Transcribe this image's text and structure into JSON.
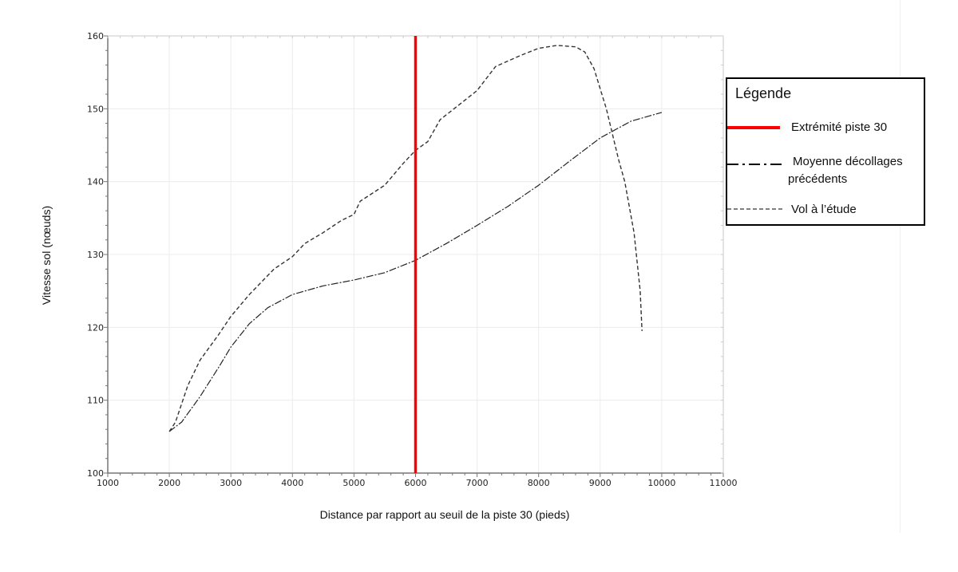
{
  "chart_data": {
    "type": "line",
    "title": "",
    "xlabel": "Distance par rapport au seuil de la piste 30 (pieds)",
    "ylabel": "Vitesse sol (nœuds)",
    "xlim": [
      1000,
      11000
    ],
    "ylim": [
      100,
      160
    ],
    "xticks": [
      1000,
      2000,
      3000,
      4000,
      5000,
      6000,
      7000,
      8000,
      9000,
      10000,
      11000
    ],
    "yticks": [
      100,
      110,
      120,
      130,
      140,
      150,
      160
    ],
    "grid": true,
    "legend_position": "right",
    "legend_title": "Légende",
    "reference_line": {
      "name": "Extrémité piste 30",
      "x": 6000,
      "color": "#ff0000"
    },
    "series": [
      {
        "name": "Moyenne décollages précédents",
        "style": "dash-dot",
        "color": "#222222",
        "points": [
          [
            2000,
            105.7
          ],
          [
            2200,
            107
          ],
          [
            2500,
            110.5
          ],
          [
            2800,
            114.5
          ],
          [
            3000,
            117.3
          ],
          [
            3300,
            120.5
          ],
          [
            3600,
            122.7
          ],
          [
            4000,
            124.5
          ],
          [
            4500,
            125.7
          ],
          [
            5000,
            126.5
          ],
          [
            5500,
            127.5
          ],
          [
            6000,
            129.2
          ],
          [
            6500,
            131.5
          ],
          [
            7000,
            134
          ],
          [
            7500,
            136.6
          ],
          [
            8000,
            139.5
          ],
          [
            8500,
            142.8
          ],
          [
            9000,
            146
          ],
          [
            9500,
            148.3
          ],
          [
            10000,
            149.5
          ]
        ]
      },
      {
        "name": "Vol à l’étude",
        "style": "dashed",
        "color": "#333333",
        "points": [
          [
            2000,
            105.7
          ],
          [
            2100,
            107
          ],
          [
            2300,
            112
          ],
          [
            2500,
            115.5
          ],
          [
            2800,
            119
          ],
          [
            3000,
            121.5
          ],
          [
            3300,
            124.5
          ],
          [
            3700,
            128
          ],
          [
            4000,
            129.7
          ],
          [
            4200,
            131.5
          ],
          [
            4500,
            133
          ],
          [
            4800,
            134.7
          ],
          [
            5000,
            135.5
          ],
          [
            5100,
            137.3
          ],
          [
            5500,
            139.5
          ],
          [
            5800,
            142.5
          ],
          [
            6000,
            144.3
          ],
          [
            6200,
            145.5
          ],
          [
            6400,
            148.5
          ],
          [
            6700,
            150.5
          ],
          [
            7000,
            152.5
          ],
          [
            7300,
            155.8
          ],
          [
            7700,
            157.3
          ],
          [
            8000,
            158.3
          ],
          [
            8300,
            158.7
          ],
          [
            8600,
            158.5
          ],
          [
            8750,
            157.8
          ],
          [
            8900,
            155.5
          ],
          [
            9100,
            150
          ],
          [
            9300,
            143
          ],
          [
            9400,
            140
          ],
          [
            9550,
            133
          ],
          [
            9650,
            125
          ],
          [
            9680,
            119.5
          ]
        ]
      }
    ]
  },
  "legend": {
    "title": "Légende",
    "items": [
      {
        "label": "Extrémité piste 30"
      },
      {
        "label_line1": "Moyenne décollages",
        "label_line2": "précédents"
      },
      {
        "label": "Vol à l’étude"
      }
    ]
  }
}
